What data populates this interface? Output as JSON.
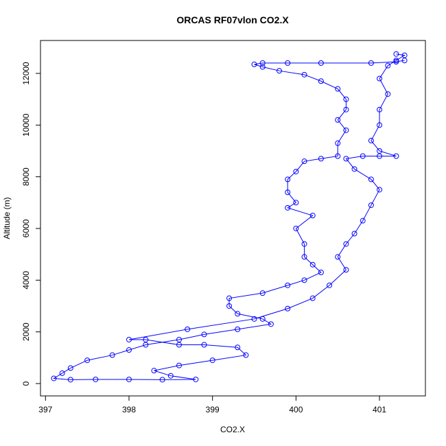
{
  "chart_data": {
    "type": "scatter",
    "connect": true,
    "title": "ORCAS RF07vlon CO2.X",
    "x_label": "CO2.X",
    "y_label": "Altitude (m)",
    "xlim": [
      396.94,
      401.55
    ],
    "ylim": [
      -478,
      13273
    ],
    "xticks": [
      397,
      398,
      399,
      400,
      401
    ],
    "yticks": [
      0,
      2000,
      4000,
      6000,
      8000,
      10000,
      12000
    ],
    "series": [
      {
        "color": "#0000ff",
        "x": [
          401.3,
          401.2,
          400.9,
          400.3,
          399.9,
          399.6,
          399.5,
          399.6,
          399.8,
          400.1,
          400.3,
          400.5,
          400.6,
          400.6,
          400.5,
          400.6,
          400.5,
          400.5,
          400.3,
          400.1,
          400.0,
          399.9,
          399.9,
          400.0,
          399.9,
          400.2,
          400.0,
          400.1,
          400.1,
          400.2,
          400.3,
          400.1,
          399.9,
          399.6,
          399.2,
          399.2,
          399.3,
          399.6,
          399.7,
          399.3,
          398.9,
          398.6,
          398.2,
          398.0,
          397.8,
          397.5,
          397.3,
          397.2,
          397.1,
          397.3,
          397.6,
          398.0,
          398.4,
          398.8,
          398.5,
          398.3,
          398.6,
          399.0,
          399.4,
          399.3,
          398.9,
          398.6,
          398.2,
          398.0,
          398.7,
          399.5,
          399.9,
          400.2,
          400.4,
          400.6,
          400.5,
          400.6,
          400.7,
          400.8,
          400.9,
          401.0,
          400.9,
          400.7,
          400.6,
          400.8,
          401.0,
          401.2,
          401.0,
          400.9,
          401.0,
          401.0,
          401.1,
          401.0,
          401.1,
          401.2,
          401.3,
          401.2
        ],
        "y": [
          12500,
          12450,
          12400,
          12400,
          12400,
          12400,
          12350,
          12250,
          12100,
          11950,
          11700,
          11400,
          11000,
          10600,
          10200,
          9800,
          9300,
          8800,
          8700,
          8600,
          8200,
          7900,
          7400,
          7000,
          6800,
          6500,
          6000,
          5400,
          4900,
          4600,
          4300,
          4000,
          3800,
          3500,
          3300,
          3000,
          2700,
          2500,
          2300,
          2100,
          1900,
          1700,
          1500,
          1300,
          1100,
          900,
          600,
          400,
          200,
          150,
          160,
          160,
          150,
          160,
          300,
          500,
          700,
          900,
          1100,
          1400,
          1500,
          1500,
          1700,
          1700,
          2100,
          2500,
          2900,
          3300,
          3800,
          4400,
          4900,
          5400,
          5800,
          6300,
          6900,
          7500,
          7900,
          8300,
          8700,
          8800,
          8800,
          8800,
          9000,
          9400,
          10000,
          10600,
          11200,
          11800,
          12300,
          12500,
          12700,
          12750
        ]
      }
    ]
  }
}
